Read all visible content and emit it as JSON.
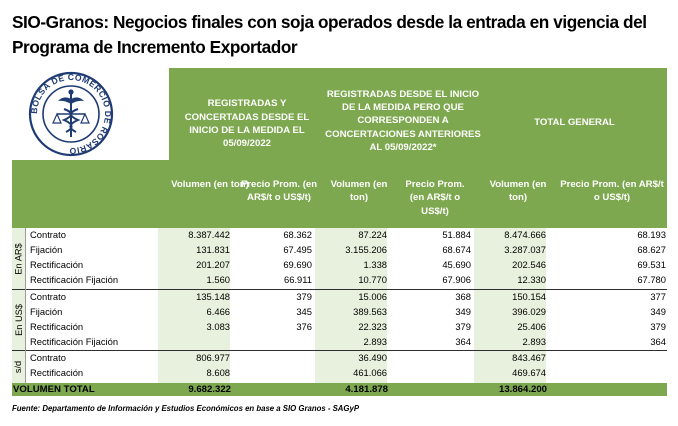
{
  "title": "SIO-Granos: Negocios finales con soja operados desde la entrada en vigencia del Programa de Incremento Exportador",
  "logo": {
    "icon": "bolsa-comercio-rosario-seal",
    "text": "BOLSA DE COMERCIO DE ROSARIO"
  },
  "colors": {
    "header_green": "#7da84f",
    "light_green": "#e8f1dd"
  },
  "groups": [
    "REGISTRADAS Y CONCERTADAS DESDE EL INICIO DE LA MEDIDA EL 05/09/2022",
    "REGISTRADAS DESDE EL INICIO DE LA MEDIDA PERO QUE CORRESPONDEN A CONCERTACIONES ANTERIORES AL 05/09/2022*",
    "TOTAL GENERAL"
  ],
  "subheaders": {
    "volumen": "Volumen (en ton)",
    "precio": "Precio Prom. (en AR$/t o US$/t)"
  },
  "sections": [
    {
      "label": "En AR$",
      "rows": [
        {
          "name": "Contrato",
          "v1": "8.387.442",
          "p1": "68.362",
          "v2": "87.224",
          "p2": "51.884",
          "vt": "8.474.666",
          "pt": "68.193"
        },
        {
          "name": "Fijación",
          "v1": "131.831",
          "p1": "67.495",
          "v2": "3.155.206",
          "p2": "68.674",
          "vt": "3.287.037",
          "pt": "68.627"
        },
        {
          "name": "Rectificación",
          "v1": "201.207",
          "p1": "69.690",
          "v2": "1.338",
          "p2": "45.690",
          "vt": "202.546",
          "pt": "69.531"
        },
        {
          "name": "Rectificación Fijación",
          "v1": "1.560",
          "p1": "66.911",
          "v2": "10.770",
          "p2": "67.906",
          "vt": "12.330",
          "pt": "67.780"
        }
      ]
    },
    {
      "label": "En US$",
      "rows": [
        {
          "name": "Contrato",
          "v1": "135.148",
          "p1": "379",
          "v2": "15.006",
          "p2": "368",
          "vt": "150.154",
          "pt": "377"
        },
        {
          "name": "Fijación",
          "v1": "6.466",
          "p1": "345",
          "v2": "389.563",
          "p2": "349",
          "vt": "396.029",
          "pt": "349"
        },
        {
          "name": "Rectificación",
          "v1": "3.083",
          "p1": "376",
          "v2": "22.323",
          "p2": "379",
          "vt": "25.406",
          "pt": "379"
        },
        {
          "name": "Rectificación Fijación",
          "v1": "",
          "p1": "",
          "v2": "2.893",
          "p2": "364",
          "vt": "2.893",
          "pt": "364"
        }
      ]
    },
    {
      "label": "s/d",
      "rows": [
        {
          "name": "Contrato",
          "v1": "806.977",
          "p1": "",
          "v2": "36.490",
          "p2": "",
          "vt": "843.467",
          "pt": ""
        },
        {
          "name": "Rectificación",
          "v1": "8.608",
          "p1": "",
          "v2": "461.066",
          "p2": "",
          "vt": "469.674",
          "pt": ""
        }
      ]
    }
  ],
  "total": {
    "label": "VOLUMEN TOTAL",
    "v1": "9.682.322",
    "v2": "4.181.878",
    "vt": "13.864.200"
  },
  "source": "Fuente: Departamento de Información y Estudios Económicos en base a SIO Granos - SAGyP"
}
